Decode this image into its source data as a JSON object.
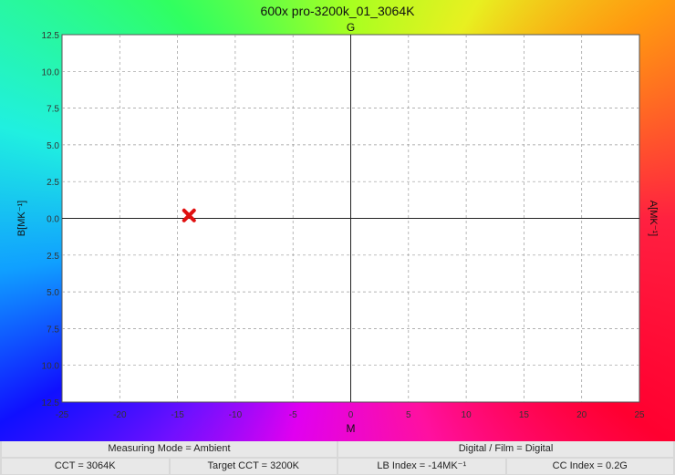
{
  "chart_data": {
    "type": "scatter",
    "title": "600x pro-3200k_01_3064K",
    "top_label": "G",
    "xlabel": "M",
    "ylabel_left": "B[MK⁻¹]",
    "ylabel_right": "A[MK⁻¹]",
    "xlim": [
      -25,
      25
    ],
    "ylim": [
      -12.5,
      12.5
    ],
    "x_ticks": [
      -25,
      -20,
      -15,
      -10,
      -5,
      0,
      5,
      10,
      15,
      20,
      25
    ],
    "y_ticks": [
      12.5,
      10.0,
      7.5,
      5.0,
      2.5,
      0.0,
      -2.5,
      -5.0,
      -7.5,
      -10.0,
      -12.5
    ],
    "y_tick_labels": [
      "12.5",
      "10.0",
      "7.5",
      "5.0",
      "2.5",
      "0.0",
      "2.5",
      "5.0",
      "7.5",
      "10.0",
      "12.5"
    ],
    "grid": true,
    "points": [
      {
        "x": -14,
        "y": 0.2,
        "marker": "x",
        "color": "#e01010"
      }
    ]
  },
  "info": {
    "row1": [
      "Measuring Mode = Ambient",
      "Digital / Film = Digital"
    ],
    "row2": [
      "CCT = 3064K",
      "Target CCT = 3200K",
      "LB Index = -14MK⁻¹",
      "CC Index = 0.2G"
    ]
  }
}
